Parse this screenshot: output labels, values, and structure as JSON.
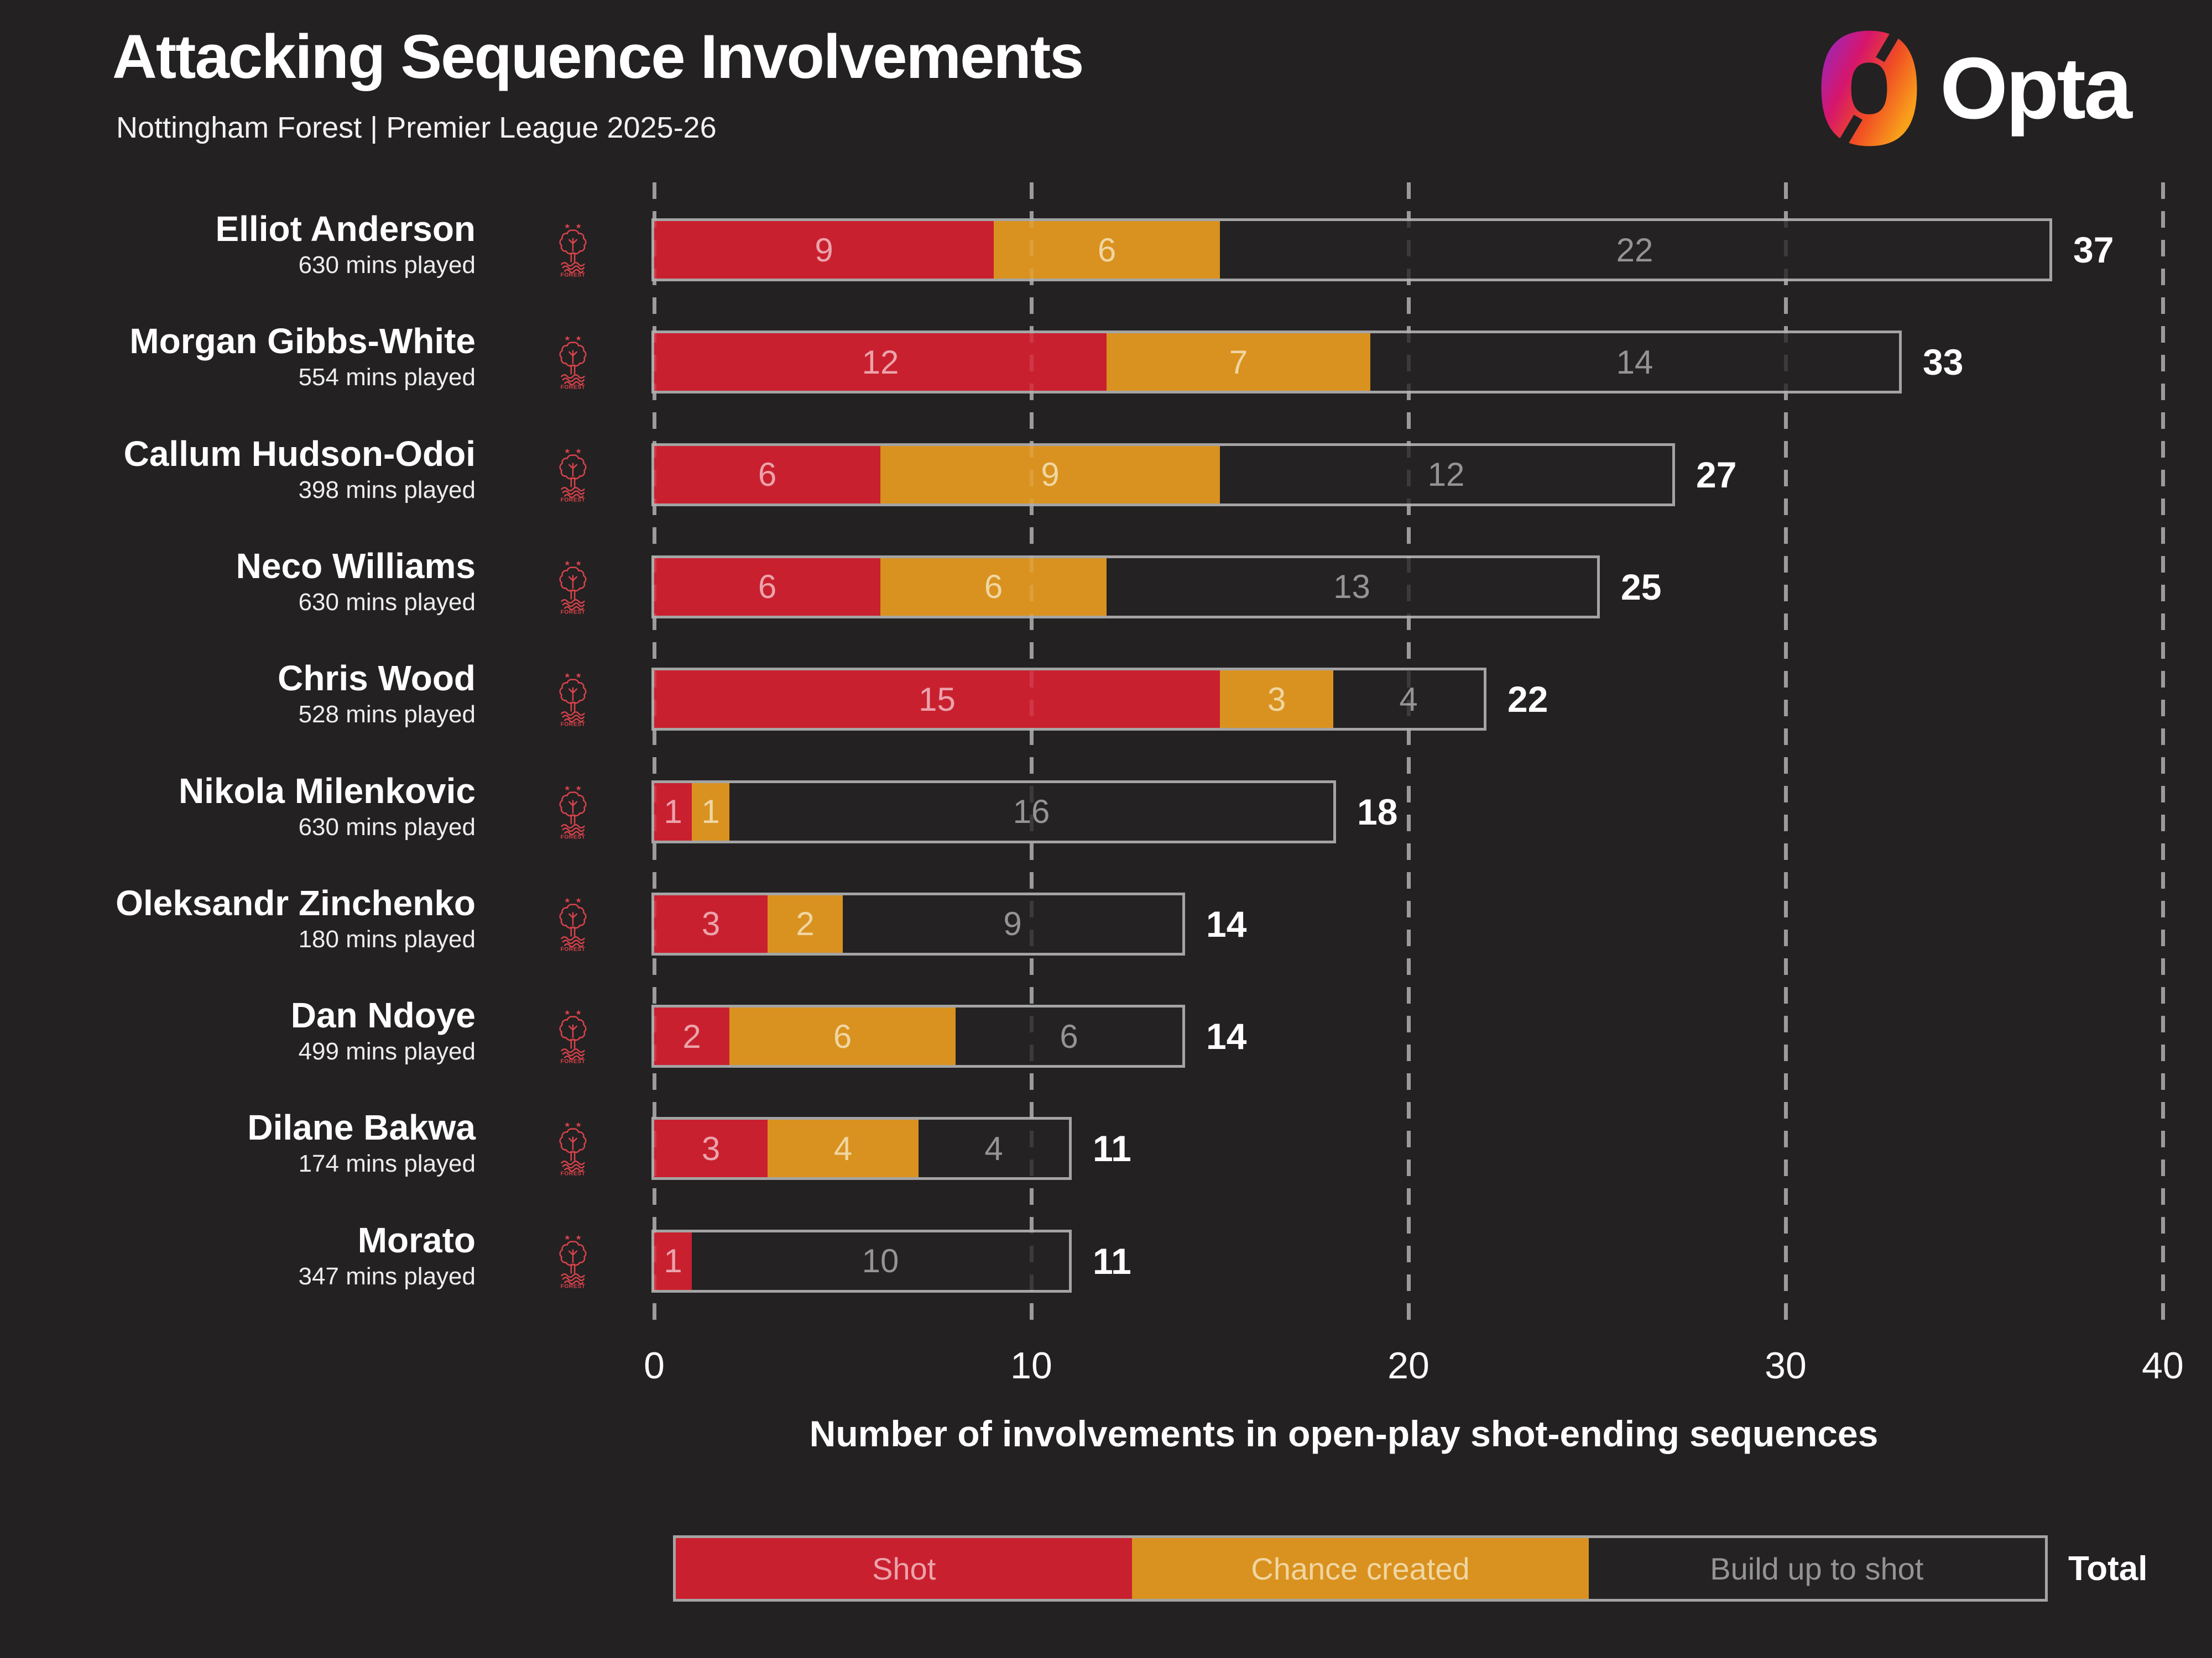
{
  "header": {
    "title": "Attacking Sequence Involvements",
    "subtitle": "Nottingham Forest | Premier League 2025-26",
    "brand": "Opta"
  },
  "chart_data": {
    "type": "bar",
    "stacked": true,
    "orientation": "horizontal",
    "title": "Attacking Sequence Involvements",
    "subtitle": "Nottingham Forest | Premier League 2025-26",
    "xlabel": "Number of involvements in open-play shot-ending sequences",
    "xlim": [
      0,
      40
    ],
    "xticks": [
      0,
      10,
      20,
      30,
      40
    ],
    "grid": "dashed-vertical",
    "legend_position": "bottom",
    "series_names": [
      "Shot",
      "Chance created",
      "Build up to shot"
    ],
    "categories": [
      "Elliot Anderson",
      "Morgan Gibbs-White",
      "Callum Hudson-Odoi",
      "Neco Williams",
      "Chris Wood",
      "Nikola Milenkovic",
      "Oleksandr Zinchenko",
      "Dan Ndoye",
      "Dilane Bakwa",
      "Morato"
    ],
    "series": [
      {
        "name": "Shot",
        "values": [
          9,
          12,
          6,
          6,
          15,
          1,
          3,
          2,
          3,
          1
        ]
      },
      {
        "name": "Chance created",
        "values": [
          6,
          7,
          9,
          6,
          3,
          1,
          2,
          6,
          4,
          0
        ]
      },
      {
        "name": "Build up to shot",
        "values": [
          22,
          14,
          12,
          13,
          4,
          16,
          9,
          6,
          4,
          10
        ]
      }
    ],
    "totals": [
      37,
      33,
      27,
      25,
      22,
      18,
      14,
      14,
      11,
      11
    ],
    "players": [
      {
        "name": "Elliot Anderson",
        "minutes": "630 mins played",
        "shot": 9,
        "chance_created": 6,
        "build_up": 22,
        "total": 37
      },
      {
        "name": "Morgan Gibbs-White",
        "minutes": "554 mins played",
        "shot": 12,
        "chance_created": 7,
        "build_up": 14,
        "total": 33
      },
      {
        "name": "Callum Hudson-Odoi",
        "minutes": "398 mins played",
        "shot": 6,
        "chance_created": 9,
        "build_up": 12,
        "total": 27
      },
      {
        "name": "Neco Williams",
        "minutes": "630 mins played",
        "shot": 6,
        "chance_created": 6,
        "build_up": 13,
        "total": 25
      },
      {
        "name": "Chris Wood",
        "minutes": "528 mins played",
        "shot": 15,
        "chance_created": 3,
        "build_up": 4,
        "total": 22
      },
      {
        "name": "Nikola Milenkovic",
        "minutes": "630 mins played",
        "shot": 1,
        "chance_created": 1,
        "build_up": 16,
        "total": 18
      },
      {
        "name": "Oleksandr Zinchenko",
        "minutes": "180 mins played",
        "shot": 3,
        "chance_created": 2,
        "build_up": 9,
        "total": 14
      },
      {
        "name": "Dan Ndoye",
        "minutes": "499 mins played",
        "shot": 2,
        "chance_created": 6,
        "build_up": 6,
        "total": 14
      },
      {
        "name": "Dilane Bakwa",
        "minutes": "174 mins played",
        "shot": 3,
        "chance_created": 4,
        "build_up": 4,
        "total": 11
      },
      {
        "name": "Morato",
        "minutes": "347 mins played",
        "shot": 1,
        "chance_created": 0,
        "build_up": 10,
        "total": 11
      }
    ]
  },
  "legend": {
    "items": [
      {
        "label": "Shot",
        "color": "#c9202f"
      },
      {
        "label": "Chance created",
        "color": "#d9921f"
      },
      {
        "label": "Build up to shot",
        "color": "#252223"
      }
    ],
    "total_label": "Total"
  },
  "colors": {
    "background": "#232122",
    "bar_red": "#c9202f",
    "bar_orange": "#d9921f",
    "bar_dark": "#252223",
    "bar_border": "#a4a4a4",
    "gridline": "#8f8f8f",
    "crest_red": "#d9434b",
    "label_on_red": "#eba3ab",
    "label_on_orange": "#f0d6a2",
    "label_on_dark": "#949494"
  }
}
